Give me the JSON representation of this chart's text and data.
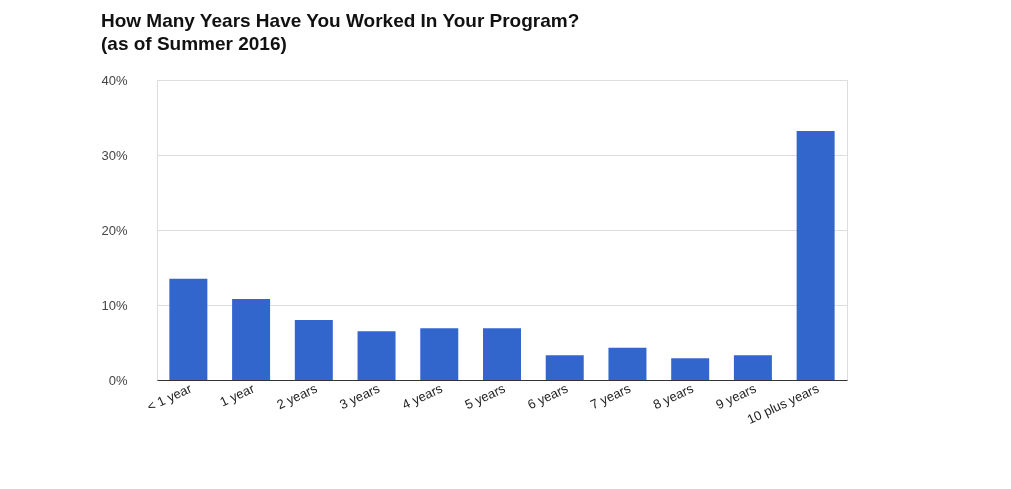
{
  "chart_data": {
    "type": "bar",
    "title": "How Many Years Have You Worked In Your Program?",
    "subtitle": "(as of Summer 2016)",
    "categories": [
      "< 1 year",
      "1 year",
      "2 years",
      "3 years",
      "4 years",
      "5 years",
      "6 years",
      "7 years",
      "8 years",
      "9 years",
      "10 plus years"
    ],
    "values": [
      13.5,
      10.8,
      8.0,
      6.5,
      6.9,
      6.9,
      3.3,
      4.3,
      2.9,
      3.3,
      33.2
    ],
    "color": "#3366cc",
    "ylim": [
      0,
      40
    ],
    "yticks": [
      {
        "value": 0,
        "label": "0%"
      },
      {
        "value": 10,
        "label": "10%"
      },
      {
        "value": 20,
        "label": "20%"
      },
      {
        "value": 30,
        "label": "30%"
      },
      {
        "value": 40,
        "label": "40%"
      }
    ],
    "grid": "y"
  }
}
